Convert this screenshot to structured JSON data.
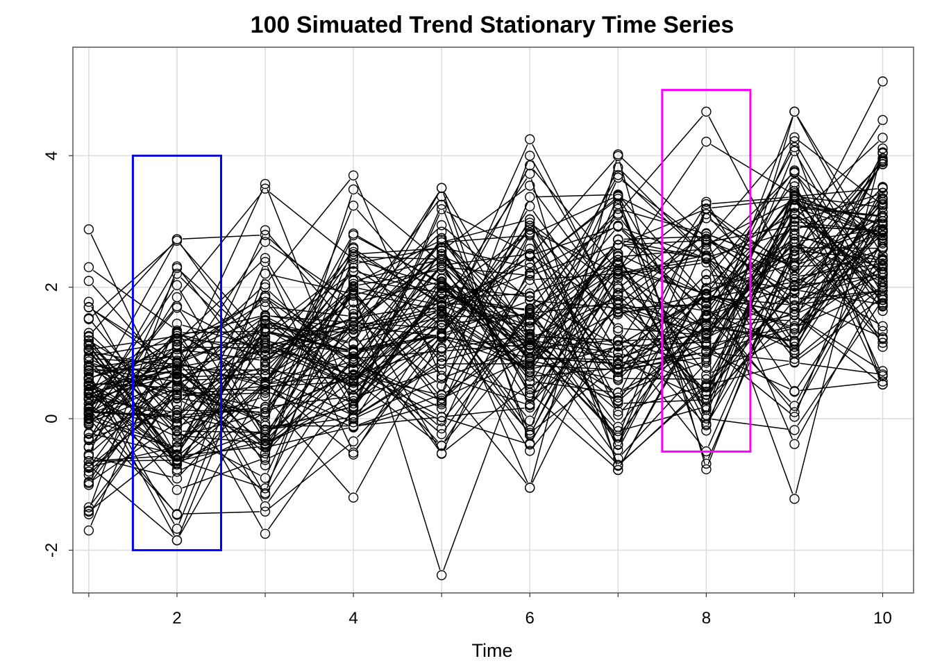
{
  "chart_data": {
    "type": "line",
    "title": "100 Simuated Trend Stationary Time Series",
    "xlabel": "Time",
    "ylabel": "",
    "xlim": [
      0.82,
      10.35
    ],
    "ylim": [
      -2.65,
      5.65
    ],
    "x_ticks": [
      1,
      2,
      3,
      4,
      5,
      6,
      7,
      8,
      9,
      10
    ],
    "x_tick_labels": [
      "",
      "2",
      "",
      "4",
      "",
      "6",
      "",
      "8",
      "",
      "10"
    ],
    "y_ticks": [
      -2,
      0,
      2,
      4
    ],
    "y_tick_labels": [
      "-2",
      "0",
      "2",
      "4"
    ],
    "grid": true,
    "n_series": 100,
    "series_style": {
      "color": "#000000",
      "marker": "open-circle"
    },
    "x": [
      1,
      2,
      3,
      4,
      5,
      6,
      7,
      8,
      9,
      10
    ],
    "series_mean_by_time": [
      0.25,
      0.45,
      0.75,
      1.05,
      1.35,
      1.45,
      1.65,
      1.65,
      2.3,
      2.6
    ],
    "series_sd_by_time": [
      0.85,
      0.9,
      1.0,
      0.95,
      1.0,
      1.0,
      1.1,
      1.0,
      1.1,
      0.9
    ],
    "series_min_by_time": [
      -1.7,
      -1.85,
      -1.75,
      -1.2,
      -2.38,
      -1.05,
      -0.78,
      -0.77,
      -1.22,
      0.52
    ],
    "series_max_by_time": [
      2.88,
      2.73,
      3.57,
      3.7,
      3.51,
      4.25,
      4.02,
      4.67,
      4.67,
      5.13
    ],
    "annotations": [
      {
        "shape": "rectangle",
        "color": "#0000ff",
        "x0": 1.5,
        "x1": 2.5,
        "y0": -2.0,
        "y1": 4.0
      },
      {
        "shape": "rectangle",
        "color": "#ff00ff",
        "x0": 7.5,
        "x1": 8.5,
        "y0": -0.5,
        "y1": 5.0
      }
    ]
  }
}
